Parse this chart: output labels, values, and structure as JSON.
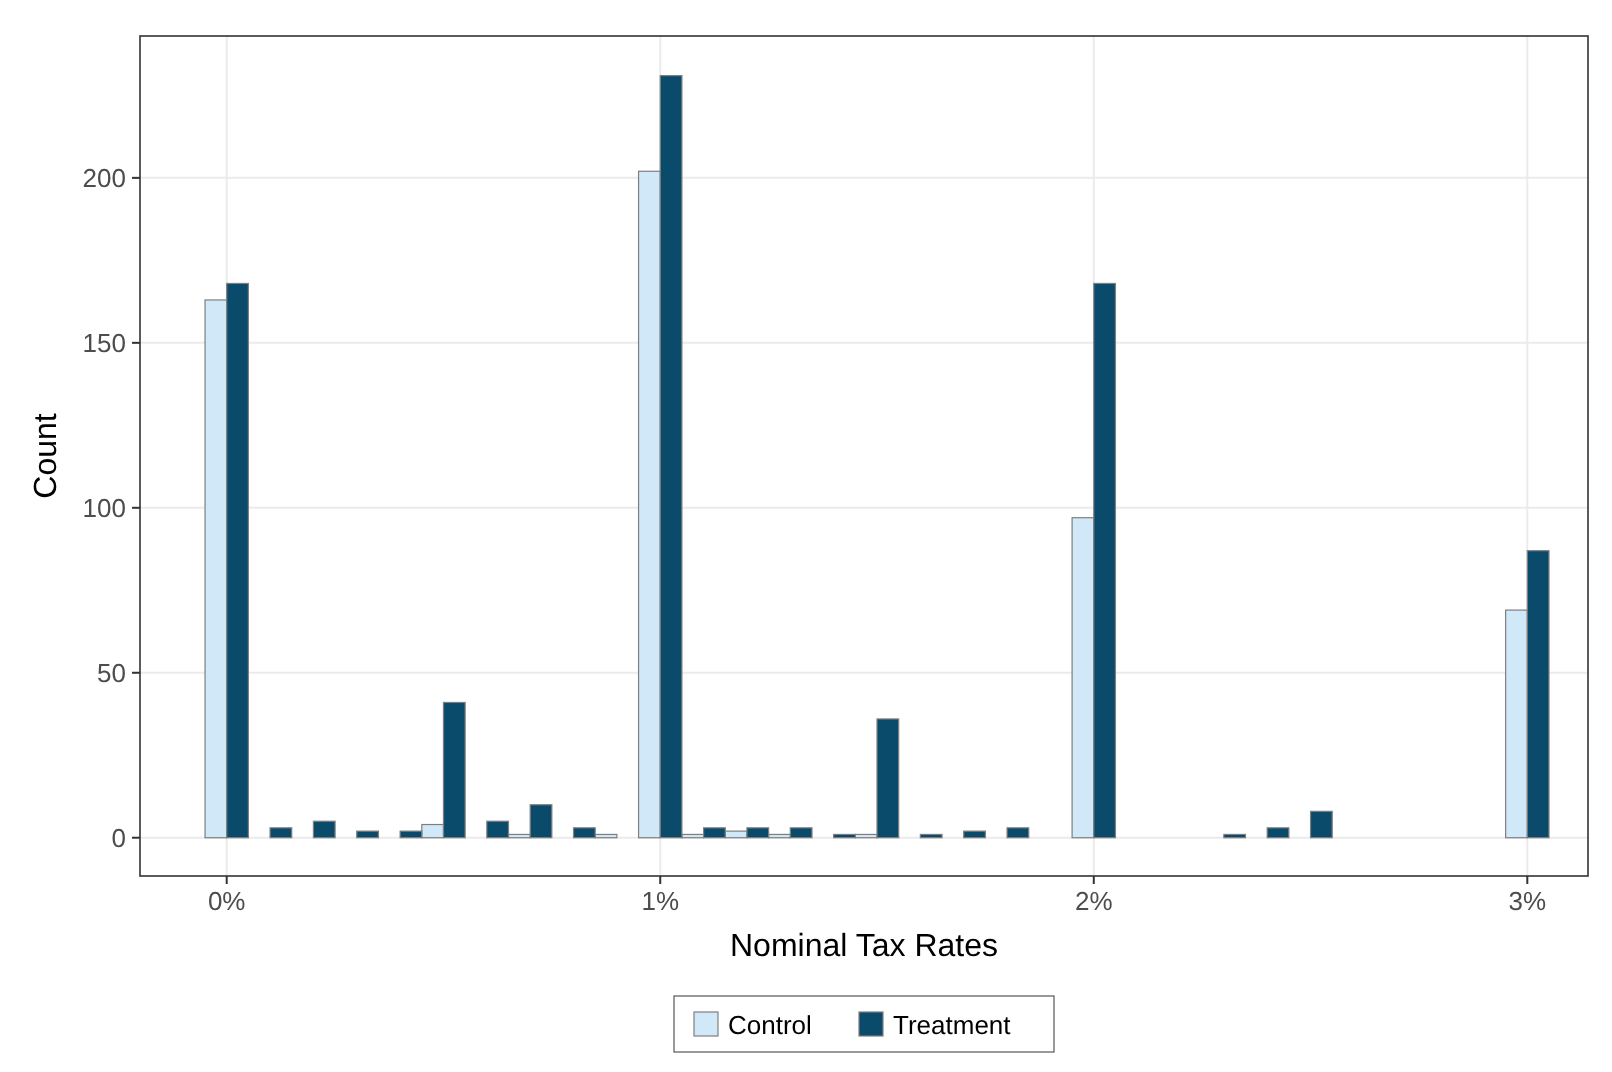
{
  "chart_data": {
    "type": "bar",
    "xlabel": "Nominal Tax Rates",
    "ylabel": "Count",
    "x": [
      0,
      0.1,
      0.2,
      0.3,
      0.4,
      0.5,
      0.6,
      0.7,
      0.8,
      0.9,
      1,
      1.1,
      1.2,
      1.3,
      1.4,
      1.5,
      1.6,
      1.7,
      1.8,
      1.9,
      2,
      2.1,
      2.2,
      2.3,
      2.4,
      2.5,
      2.6,
      2.7,
      2.8,
      2.9,
      3
    ],
    "series": [
      {
        "name": "Control",
        "color": "#d1e8f8",
        "values": [
          163,
          0,
          0,
          0,
          0,
          4,
          0,
          1,
          0,
          1,
          202,
          1,
          2,
          1,
          0,
          1,
          0,
          0,
          0,
          0,
          97,
          0,
          0,
          0,
          0,
          0,
          0,
          0,
          0,
          0,
          69
        ]
      },
      {
        "name": "Treatment",
        "color": "#0a4a6b",
        "values": [
          168,
          3,
          5,
          2,
          2,
          41,
          5,
          10,
          3,
          0,
          231,
          3,
          3,
          3,
          1,
          36,
          1,
          2,
          3,
          0,
          168,
          0,
          0,
          1,
          3,
          8,
          0,
          0,
          0,
          0,
          87
        ]
      }
    ],
    "xlim": [
      -0.2,
      3.14
    ],
    "ylim": [
      -11.6,
      243
    ],
    "xticks": [
      {
        "value": 0,
        "label": "0%"
      },
      {
        "value": 1,
        "label": "1%"
      },
      {
        "value": 2,
        "label": "2%"
      },
      {
        "value": 3,
        "label": "3%"
      }
    ],
    "yticks": [
      0,
      50,
      100,
      150,
      200
    ],
    "grid": true,
    "legend": "bottom"
  }
}
